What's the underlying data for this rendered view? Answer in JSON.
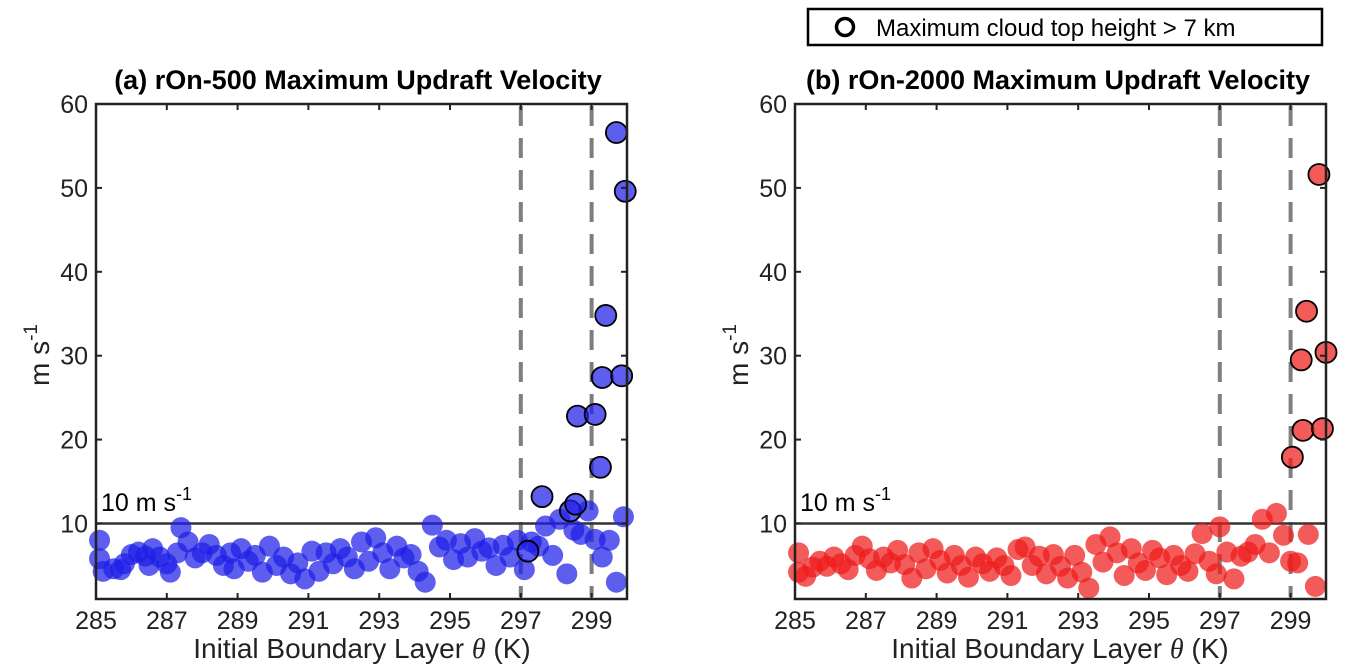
{
  "legend": {
    "label": "Maximum cloud top height > 7 km"
  },
  "chart_data": [
    {
      "type": "scatter",
      "title": "(a) rOn-500 Maximum Updraft Velocity",
      "xlabel_main": "Initial Boundary Layer ",
      "xlabel_symbol": "θ",
      "xlabel_unit": " (K)",
      "ylabel_main": "m s",
      "ylabel_sup": "-1",
      "xlim": [
        285,
        300
      ],
      "ylim": [
        1,
        60
      ],
      "xticks": [
        285,
        287,
        289,
        291,
        293,
        295,
        297,
        299
      ],
      "yticks": [
        10,
        20,
        30,
        40,
        50,
        60
      ],
      "grid": false,
      "color": "#1f1fe8",
      "threshold": {
        "y": 10,
        "label_main": "10 m s",
        "label_sup": "-1"
      },
      "vlines": [
        297,
        299
      ],
      "points": [
        [
          285.1,
          8.0
        ],
        [
          285.1,
          5.8
        ],
        [
          285.2,
          4.3
        ],
        [
          285.5,
          4.6
        ],
        [
          285.7,
          4.5
        ],
        [
          285.8,
          5.2
        ],
        [
          286.0,
          6.3
        ],
        [
          286.2,
          6.6
        ],
        [
          286.4,
          6.1
        ],
        [
          286.5,
          5.0
        ],
        [
          286.6,
          7.0
        ],
        [
          286.8,
          6.0
        ],
        [
          287.0,
          5.2
        ],
        [
          287.1,
          4.2
        ],
        [
          287.3,
          6.5
        ],
        [
          287.4,
          9.5
        ],
        [
          287.6,
          7.8
        ],
        [
          287.8,
          5.9
        ],
        [
          288.0,
          6.5
        ],
        [
          288.2,
          7.5
        ],
        [
          288.4,
          6.2
        ],
        [
          288.6,
          5.0
        ],
        [
          288.8,
          6.5
        ],
        [
          288.9,
          4.6
        ],
        [
          289.1,
          7.0
        ],
        [
          289.3,
          5.5
        ],
        [
          289.5,
          6.2
        ],
        [
          289.7,
          4.2
        ],
        [
          289.9,
          7.3
        ],
        [
          290.1,
          5.0
        ],
        [
          290.3,
          6.0
        ],
        [
          290.5,
          4.0
        ],
        [
          290.7,
          5.3
        ],
        [
          290.9,
          3.4
        ],
        [
          291.1,
          6.7
        ],
        [
          291.3,
          4.3
        ],
        [
          291.5,
          6.5
        ],
        [
          291.7,
          5.2
        ],
        [
          291.9,
          7.0
        ],
        [
          292.1,
          6.0
        ],
        [
          292.3,
          4.6
        ],
        [
          292.5,
          7.8
        ],
        [
          292.7,
          5.5
        ],
        [
          292.9,
          8.3
        ],
        [
          293.1,
          6.5
        ],
        [
          293.3,
          4.6
        ],
        [
          293.5,
          7.3
        ],
        [
          293.7,
          5.9
        ],
        [
          293.9,
          6.3
        ],
        [
          294.1,
          4.3
        ],
        [
          294.3,
          3.0
        ],
        [
          294.5,
          9.8
        ],
        [
          294.7,
          7.2
        ],
        [
          294.9,
          8.0
        ],
        [
          295.1,
          5.7
        ],
        [
          295.3,
          7.6
        ],
        [
          295.5,
          6.0
        ],
        [
          295.7,
          8.2
        ],
        [
          295.9,
          6.7
        ],
        [
          296.1,
          7.1
        ],
        [
          296.3,
          5.0
        ],
        [
          296.5,
          7.4
        ],
        [
          296.7,
          6.0
        ],
        [
          296.9,
          8.0
        ],
        [
          297.1,
          4.5
        ],
        [
          297.3,
          7.8
        ],
        [
          297.5,
          7.3
        ],
        [
          297.7,
          9.7
        ],
        [
          297.9,
          6.2
        ],
        [
          298.1,
          10.5
        ],
        [
          298.3,
          4.0
        ],
        [
          298.5,
          9.2
        ],
        [
          298.7,
          8.7
        ],
        [
          298.9,
          11.5
        ],
        [
          299.1,
          8.1
        ],
        [
          299.3,
          6.0
        ],
        [
          299.5,
          8.0
        ],
        [
          299.7,
          3.0
        ],
        [
          299.9,
          10.8
        ]
      ],
      "highlighted": [
        [
          297.2,
          6.7
        ],
        [
          297.6,
          13.2
        ],
        [
          298.4,
          11.5
        ],
        [
          298.55,
          12.3
        ],
        [
          298.6,
          22.8
        ],
        [
          299.1,
          23.0
        ],
        [
          299.25,
          16.7
        ],
        [
          299.3,
          27.4
        ],
        [
          299.4,
          34.8
        ],
        [
          299.7,
          56.6
        ],
        [
          299.85,
          27.6
        ],
        [
          299.95,
          49.6
        ]
      ]
    },
    {
      "type": "scatter",
      "title": "(b) rOn-2000 Maximum Updraft Velocity",
      "xlabel_main": "Initial Boundary Layer ",
      "xlabel_symbol": "θ",
      "xlabel_unit": " (K)",
      "ylabel_main": "m s",
      "ylabel_sup": "-1",
      "xlim": [
        285,
        300
      ],
      "ylim": [
        1,
        60
      ],
      "xticks": [
        285,
        287,
        289,
        291,
        293,
        295,
        297,
        299
      ],
      "yticks": [
        10,
        20,
        30,
        40,
        50,
        60
      ],
      "grid": false,
      "color": "#ee1c1c",
      "threshold": {
        "y": 10,
        "label_main": "10 m s",
        "label_sup": "-1"
      },
      "vlines": [
        297,
        299
      ],
      "points": [
        [
          285.1,
          6.5
        ],
        [
          285.1,
          4.2
        ],
        [
          285.3,
          3.7
        ],
        [
          285.5,
          4.8
        ],
        [
          285.7,
          5.5
        ],
        [
          285.9,
          4.9
        ],
        [
          286.1,
          6.0
        ],
        [
          286.3,
          5.2
        ],
        [
          286.5,
          4.5
        ],
        [
          286.7,
          6.2
        ],
        [
          286.9,
          7.3
        ],
        [
          287.1,
          5.8
        ],
        [
          287.3,
          4.4
        ],
        [
          287.5,
          6.0
        ],
        [
          287.7,
          5.3
        ],
        [
          287.9,
          6.8
        ],
        [
          288.1,
          5.1
        ],
        [
          288.3,
          3.5
        ],
        [
          288.5,
          6.5
        ],
        [
          288.7,
          4.6
        ],
        [
          288.9,
          7.0
        ],
        [
          289.1,
          5.6
        ],
        [
          289.3,
          4.1
        ],
        [
          289.5,
          6.2
        ],
        [
          289.7,
          5.0
        ],
        [
          289.9,
          3.6
        ],
        [
          290.1,
          6.0
        ],
        [
          290.3,
          5.2
        ],
        [
          290.5,
          4.3
        ],
        [
          290.7,
          5.9
        ],
        [
          290.9,
          5.0
        ],
        [
          291.1,
          3.8
        ],
        [
          291.3,
          6.9
        ],
        [
          291.5,
          7.2
        ],
        [
          291.7,
          5.0
        ],
        [
          291.9,
          6.1
        ],
        [
          292.1,
          4.0
        ],
        [
          292.3,
          6.3
        ],
        [
          292.5,
          4.9
        ],
        [
          292.7,
          3.5
        ],
        [
          292.9,
          6.2
        ],
        [
          293.1,
          4.2
        ],
        [
          293.3,
          2.3
        ],
        [
          293.5,
          7.5
        ],
        [
          293.7,
          5.4
        ],
        [
          293.9,
          8.4
        ],
        [
          294.1,
          6.5
        ],
        [
          294.3,
          3.8
        ],
        [
          294.5,
          7.0
        ],
        [
          294.7,
          5.3
        ],
        [
          294.9,
          4.4
        ],
        [
          295.1,
          6.8
        ],
        [
          295.3,
          5.9
        ],
        [
          295.5,
          3.9
        ],
        [
          295.7,
          6.2
        ],
        [
          295.9,
          5.0
        ],
        [
          296.1,
          4.3
        ],
        [
          296.3,
          6.4
        ],
        [
          296.5,
          8.8
        ],
        [
          296.7,
          5.5
        ],
        [
          296.9,
          4.0
        ],
        [
          297.0,
          9.6
        ],
        [
          297.2,
          6.6
        ],
        [
          297.4,
          3.4
        ],
        [
          297.6,
          6.1
        ],
        [
          297.8,
          6.6
        ],
        [
          298.0,
          7.5
        ],
        [
          298.2,
          10.5
        ],
        [
          298.4,
          6.5
        ],
        [
          298.6,
          11.2
        ],
        [
          298.8,
          8.6
        ],
        [
          299.0,
          5.5
        ],
        [
          299.2,
          5.3
        ],
        [
          299.5,
          8.7
        ],
        [
          299.7,
          2.5
        ]
      ],
      "highlighted": [
        [
          299.05,
          17.9
        ],
        [
          299.3,
          29.5
        ],
        [
          299.35,
          21.1
        ],
        [
          299.45,
          35.3
        ],
        [
          299.9,
          21.3
        ],
        [
          299.8,
          51.6
        ],
        [
          300.0,
          30.4
        ]
      ]
    }
  ]
}
